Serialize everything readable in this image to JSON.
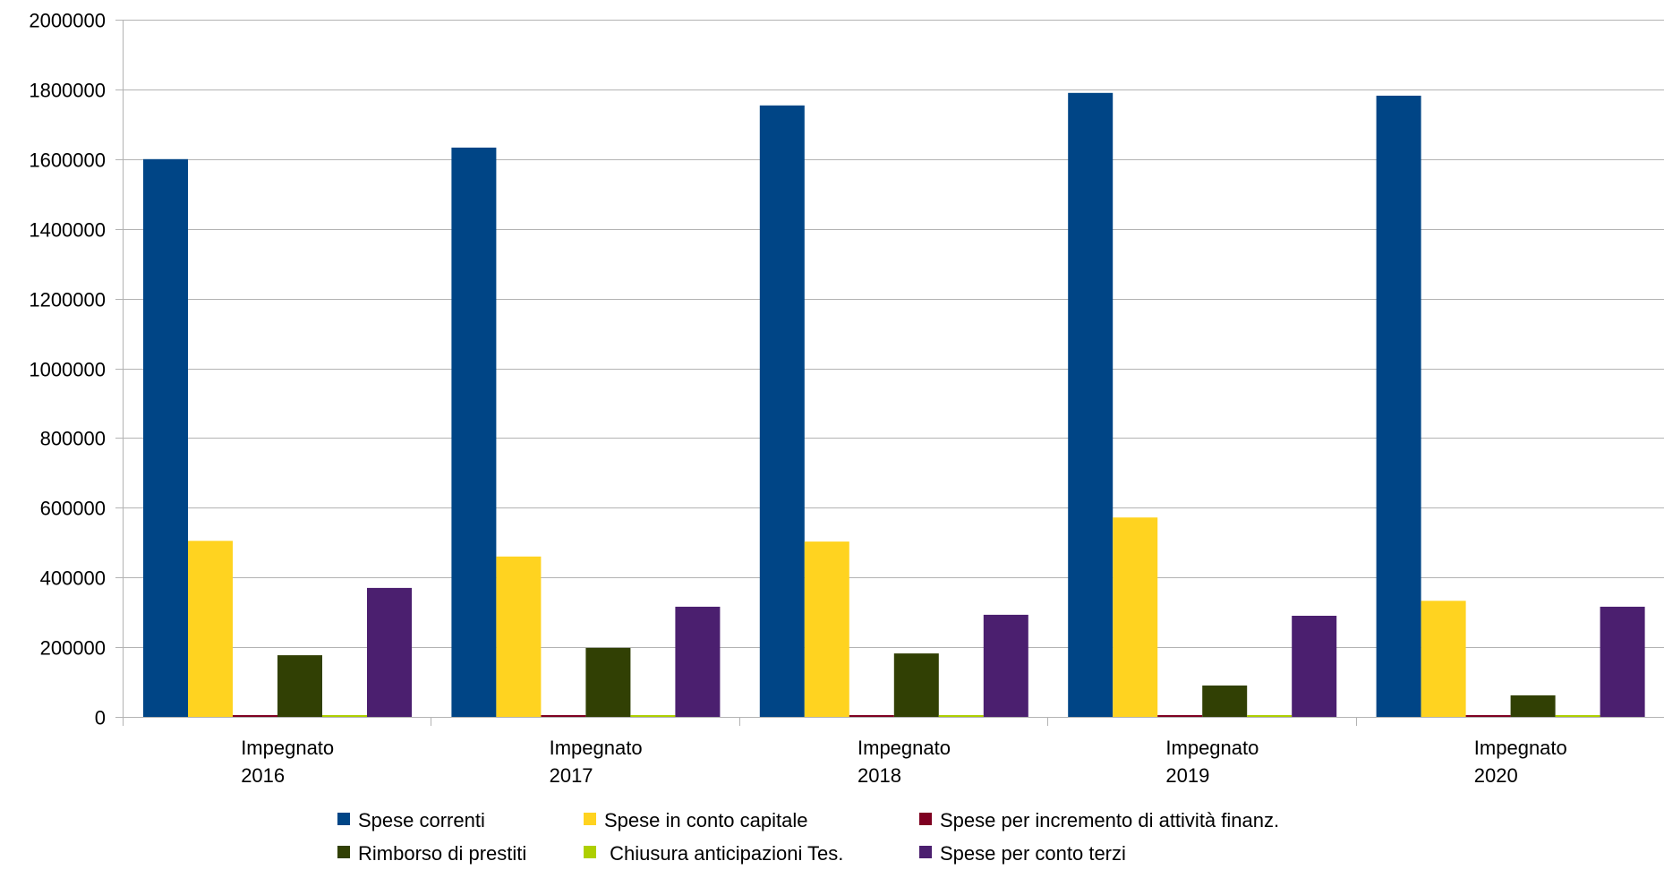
{
  "chart_data": {
    "type": "bar",
    "title": "",
    "xlabel": "",
    "ylabel": "",
    "ylim": [
      0,
      2000000
    ],
    "yticks": [
      0,
      200000,
      400000,
      600000,
      800000,
      1000000,
      1200000,
      1400000,
      1600000,
      1800000,
      2000000
    ],
    "ytick_labels": [
      "0",
      "200000",
      "400000",
      "600000",
      "800000",
      "1000000",
      "1200000",
      "1400000",
      "1600000",
      "1800000",
      "2000000"
    ],
    "grid": true,
    "legend_position": "bottom",
    "categories": [
      [
        "Impegnato",
        "2016"
      ],
      [
        "Impegnato",
        "2017"
      ],
      [
        "Impegnato",
        "2018"
      ],
      [
        "Impegnato",
        "2019"
      ],
      [
        "Impegnato",
        "2020"
      ]
    ],
    "series": [
      {
        "name": "Spese correnti",
        "color": "#004586",
        "values": [
          1600000,
          1633000,
          1754000,
          1790000,
          1782000
        ]
      },
      {
        "name": "Spese in conto capitale",
        "color": "#ffd320",
        "values": [
          505000,
          460000,
          503000,
          572000,
          333000
        ]
      },
      {
        "name": "Spese per incremento di attività finanz.",
        "color": "#7e0021",
        "values": [
          0,
          0,
          0,
          0,
          0
        ]
      },
      {
        "name": "Rimborso di prestiti",
        "color": "#314004",
        "values": [
          177000,
          198000,
          182000,
          90000,
          62000
        ]
      },
      {
        "name": " Chiusura anticipazioni Tes.",
        "color": "#aecf00",
        "values": [
          0,
          0,
          0,
          0,
          0
        ]
      },
      {
        "name": "Spese per conto terzi",
        "color": "#4b1f6f",
        "values": [
          370000,
          316000,
          293000,
          290000,
          316000
        ]
      }
    ]
  }
}
